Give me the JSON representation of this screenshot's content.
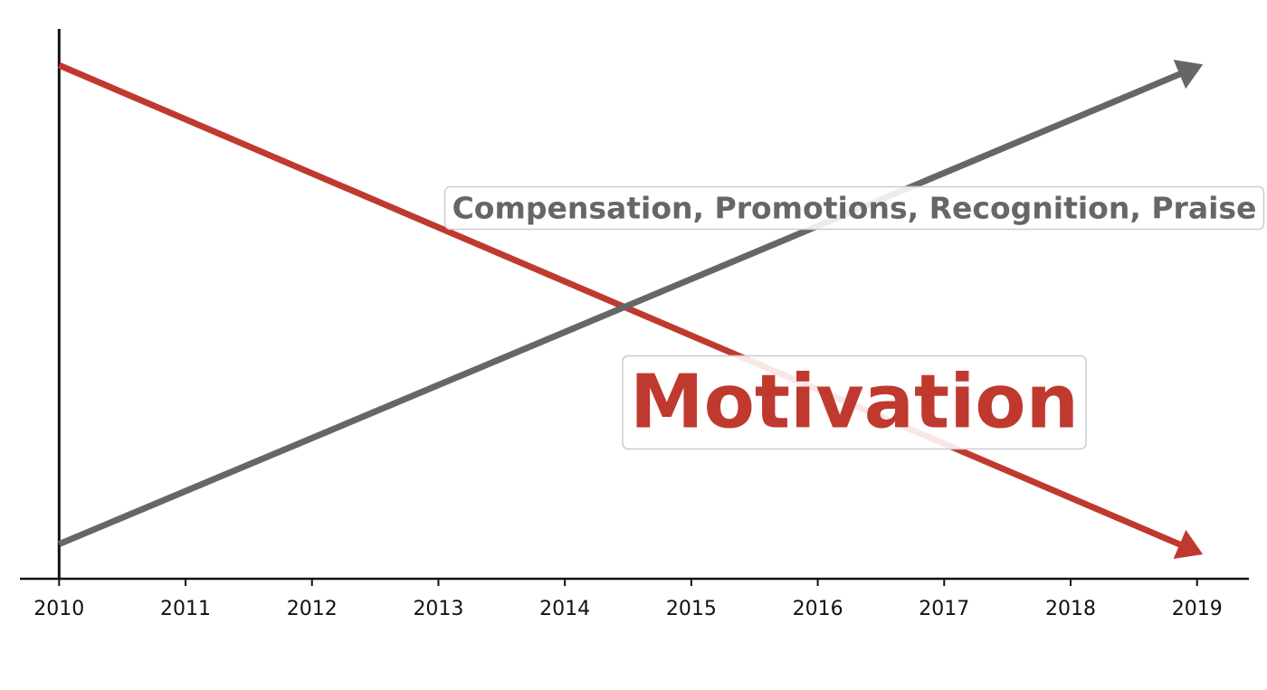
{
  "chart_data": {
    "type": "line",
    "x": [
      2010,
      2019
    ],
    "series": [
      {
        "name": "Motivation",
        "color": "#c0392f",
        "values": [
          93.4,
          4.9
        ]
      },
      {
        "name": "Compensation, Promotions, Recognition, Praise",
        "color": "#666666",
        "values": [
          6.3,
          93.1
        ]
      }
    ],
    "xlim": [
      2009.69,
      2019.41
    ],
    "xticks": [
      2010,
      2011,
      2012,
      2013,
      2014,
      2015,
      2016,
      2017,
      2018,
      2019
    ],
    "ylim": [
      0,
      100
    ]
  }
}
